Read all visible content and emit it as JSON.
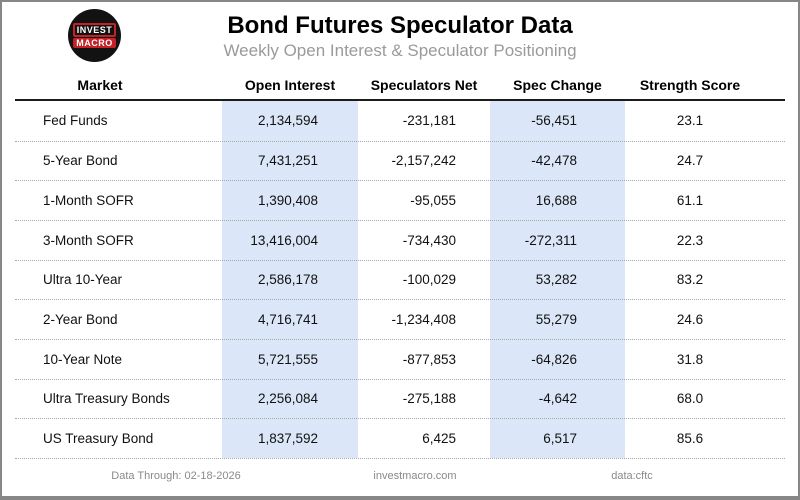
{
  "header": {
    "logo": {
      "line1": "INVEST",
      "line2": "MACRO"
    }
  },
  "chart_data": {
    "type": "table",
    "title": "Bond Futures Speculator Data",
    "subtitle": "Weekly Open Interest & Speculator Positioning",
    "columns": [
      "Market",
      "Open Interest",
      "Speculators Net",
      "Spec Change",
      "Strength Score"
    ],
    "highlighted_columns": [
      "Open Interest",
      "Spec Change"
    ],
    "rows": [
      [
        "Fed Funds",
        "2,134,594",
        "-231,181",
        "-56,451",
        "23.1"
      ],
      [
        "5-Year Bond",
        "7,431,251",
        "-2,157,242",
        "-42,478",
        "24.7"
      ],
      [
        "1-Month SOFR",
        "1,390,408",
        "-95,055",
        "16,688",
        "61.1"
      ],
      [
        "3-Month SOFR",
        "13,416,004",
        "-734,430",
        "-272,311",
        "22.3"
      ],
      [
        "Ultra 10-Year",
        "2,586,178",
        "-100,029",
        "53,282",
        "83.2"
      ],
      [
        "2-Year Bond",
        "4,716,741",
        "-1,234,408",
        "55,279",
        "24.6"
      ],
      [
        "10-Year Note",
        "5,721,555",
        "-877,853",
        "-64,826",
        "31.8"
      ],
      [
        "Ultra Treasury Bonds",
        "2,256,084",
        "-275,188",
        "-4,642",
        "68.0"
      ],
      [
        "US Treasury Bond",
        "1,837,592",
        "6,425",
        "6,517",
        "85.6"
      ]
    ]
  },
  "footer": {
    "data_through": "Data Through: 02-18-2026",
    "website": "investmacro.com",
    "source": "data:cftc"
  },
  "colors": {
    "highlight_column_bg": "#dbe7f8",
    "logo_red": "#c42127",
    "logo_bg": "#121212",
    "frame_border": "#878787",
    "subtitle_text": "#9a9a9a",
    "footer_text": "#8a8a8a"
  }
}
